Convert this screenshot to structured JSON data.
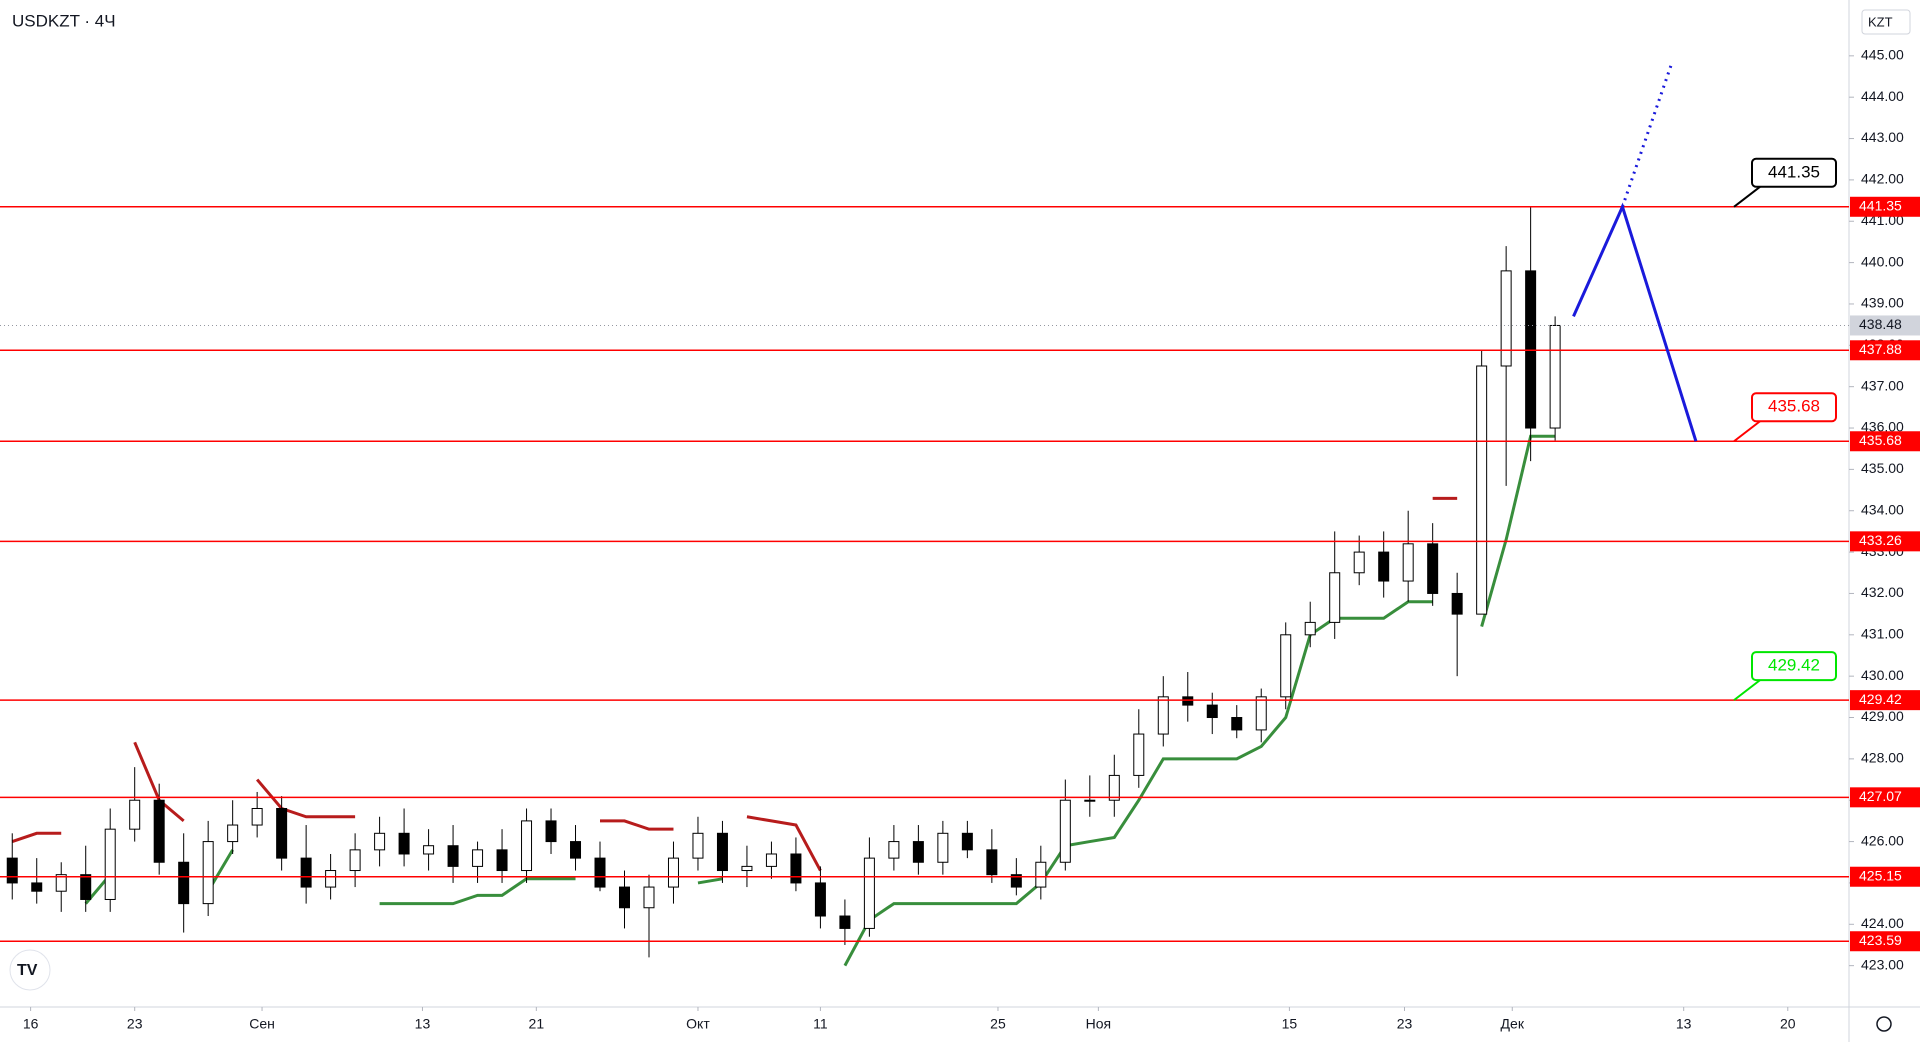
{
  "chart_data": {
    "type": "candlestick",
    "title": "USDKZT · 4Ч",
    "currency": "KZT",
    "x": [
      1,
      3,
      5,
      7,
      9,
      11,
      13,
      15,
      17,
      19,
      21,
      23,
      25,
      27,
      29,
      31,
      33,
      35,
      37,
      39,
      41,
      43,
      45,
      47,
      49,
      51,
      53,
      55,
      57,
      59,
      61,
      63,
      65,
      67,
      69,
      71,
      73,
      75,
      77,
      79,
      81,
      83,
      85,
      87,
      89,
      91,
      93,
      95,
      97,
      99,
      101,
      103,
      105,
      107,
      109,
      111,
      113,
      115,
      117,
      119,
      121,
      123,
      125,
      127
    ],
    "open": [
      425.6,
      425.0,
      424.8,
      425.2,
      424.6,
      426.3,
      427.0,
      425.5,
      424.5,
      426.0,
      426.4,
      426.8,
      425.6,
      424.9,
      425.3,
      425.8,
      426.2,
      425.7,
      425.9,
      425.4,
      425.8,
      425.3,
      426.5,
      426.0,
      425.6,
      424.9,
      424.4,
      424.9,
      425.6,
      426.2,
      425.3,
      425.4,
      425.7,
      425.0,
      424.2,
      423.9,
      425.6,
      426.0,
      425.5,
      426.2,
      425.8,
      425.2,
      424.9,
      425.5,
      427.0,
      427.0,
      427.6,
      428.6,
      429.5,
      429.3,
      429.0,
      428.7,
      429.5,
      431.0,
      431.3,
      432.5,
      433.0,
      432.3,
      433.2,
      432.0,
      431.5,
      437.5,
      439.8,
      436.0
    ],
    "high": [
      426.2,
      425.6,
      425.5,
      425.9,
      426.8,
      427.8,
      427.4,
      426.2,
      426.5,
      427.0,
      427.2,
      427.1,
      426.4,
      425.7,
      426.2,
      426.6,
      426.8,
      426.3,
      426.4,
      426.0,
      426.3,
      426.8,
      426.8,
      426.4,
      426.0,
      425.3,
      425.2,
      426.0,
      426.6,
      426.5,
      425.9,
      426.0,
      426.1,
      425.4,
      424.6,
      426.1,
      426.4,
      426.4,
      426.5,
      426.5,
      426.3,
      425.6,
      425.9,
      427.5,
      427.6,
      428.1,
      429.2,
      430.0,
      430.1,
      429.6,
      429.3,
      429.7,
      431.3,
      431.8,
      433.5,
      433.4,
      433.5,
      434.0,
      433.7,
      432.5,
      437.9,
      440.4,
      441.35,
      438.7
    ],
    "low": [
      424.6,
      424.5,
      424.3,
      424.3,
      424.3,
      426.0,
      425.2,
      423.8,
      424.2,
      425.7,
      426.1,
      425.3,
      424.5,
      424.6,
      424.9,
      425.4,
      425.4,
      425.3,
      425.0,
      425.0,
      425.0,
      425.0,
      425.7,
      425.3,
      424.8,
      423.9,
      423.2,
      424.5,
      425.3,
      425.0,
      424.9,
      425.1,
      424.8,
      423.9,
      423.5,
      423.7,
      425.3,
      425.2,
      425.2,
      425.6,
      425.0,
      424.7,
      424.6,
      425.3,
      426.6,
      426.6,
      427.3,
      428.3,
      428.9,
      428.6,
      428.5,
      428.4,
      429.2,
      430.7,
      430.9,
      432.2,
      431.9,
      431.8,
      431.7,
      430.0,
      431.5,
      434.6,
      435.2,
      435.7
    ],
    "close": [
      425.0,
      424.8,
      425.2,
      424.6,
      426.3,
      427.0,
      425.5,
      424.5,
      426.0,
      426.4,
      426.8,
      425.6,
      424.9,
      425.3,
      425.8,
      426.2,
      425.7,
      425.9,
      425.4,
      425.8,
      425.3,
      426.5,
      426.0,
      425.6,
      424.9,
      424.4,
      424.9,
      425.6,
      426.2,
      425.3,
      425.4,
      425.7,
      425.0,
      424.2,
      423.9,
      425.6,
      426.0,
      425.5,
      426.2,
      425.8,
      425.2,
      424.9,
      425.5,
      427.0,
      427.0,
      427.6,
      428.6,
      429.5,
      429.3,
      429.0,
      428.7,
      429.5,
      431.0,
      431.3,
      432.5,
      433.0,
      432.3,
      433.2,
      432.0,
      431.5,
      437.5,
      439.8,
      436.0,
      438.48
    ],
    "trend_up": [
      null,
      null,
      null,
      424.5,
      425.2,
      null,
      null,
      null,
      424.8,
      425.8,
      null,
      null,
      null,
      null,
      null,
      424.5,
      424.5,
      424.5,
      424.5,
      424.7,
      424.7,
      425.1,
      425.1,
      425.1,
      null,
      null,
      null,
      null,
      425.0,
      425.1,
      null,
      null,
      null,
      null,
      423.0,
      424.1,
      424.5,
      424.5,
      424.5,
      424.5,
      424.5,
      424.5,
      425.0,
      425.9,
      426.0,
      426.1,
      427.0,
      428.0,
      428.0,
      428.0,
      428.0,
      428.3,
      429.0,
      431.0,
      431.4,
      431.4,
      431.4,
      431.8,
      431.8,
      null,
      431.2,
      433.3,
      435.8,
      435.8
    ],
    "trend_down": [
      426.0,
      426.2,
      426.2,
      null,
      null,
      428.4,
      427.0,
      426.5,
      null,
      null,
      427.5,
      426.8,
      426.6,
      426.6,
      426.6,
      null,
      null,
      null,
      null,
      null,
      null,
      null,
      null,
      null,
      426.5,
      426.5,
      426.3,
      426.3,
      null,
      null,
      426.6,
      426.5,
      426.4,
      425.3,
      null,
      null,
      null,
      null,
      null,
      null,
      null,
      null,
      null,
      null,
      null,
      null,
      null,
      null,
      null,
      null,
      null,
      null,
      null,
      null,
      null,
      null,
      null,
      null,
      434.3,
      434.3,
      null,
      null,
      null,
      null
    ],
    "levels": [
      441.35,
      437.88,
      435.68,
      433.26,
      429.42,
      427.07,
      425.15,
      423.59
    ],
    "last_price": 438.48,
    "callouts": [
      {
        "value": 441.35,
        "color": "#000000"
      },
      {
        "value": 435.68,
        "color": "#ff0000"
      },
      {
        "value": 429.42,
        "color": "#00e600"
      }
    ],
    "projection": {
      "x": [
        128.5,
        132.5,
        138.5
      ],
      "values": [
        438.7,
        441.35,
        435.68
      ]
    },
    "projection_dotted": {
      "x": [
        132.5,
        136.5
      ],
      "values": [
        441.35,
        444.8
      ]
    },
    "xlim": [
      0,
      151
    ],
    "xticks": [
      {
        "value": 2.5,
        "label": "16"
      },
      {
        "value": 11,
        "label": "23"
      },
      {
        "value": 21.4,
        "label": "Сен"
      },
      {
        "value": 34.5,
        "label": "13"
      },
      {
        "value": 43.8,
        "label": "21"
      },
      {
        "value": 57,
        "label": "Окт"
      },
      {
        "value": 67,
        "label": "11"
      },
      {
        "value": 81.5,
        "label": "25"
      },
      {
        "value": 89.7,
        "label": "Ноя"
      },
      {
        "value": 105.3,
        "label": "15"
      },
      {
        "value": 114.7,
        "label": "23"
      },
      {
        "value": 123.5,
        "label": "Дек"
      },
      {
        "value": 137.5,
        "label": "13"
      },
      {
        "value": 146,
        "label": "20"
      }
    ],
    "ylim": [
      422.0,
      446.35
    ],
    "yticks": [
      {
        "value": 423,
        "label": "423.00"
      },
      {
        "value": 424,
        "label": "424.00"
      },
      {
        "value": 425,
        "label": "425.00"
      },
      {
        "value": 426,
        "label": "426.00"
      },
      {
        "value": 427,
        "label": "427.00"
      },
      {
        "value": 428,
        "label": "428.00"
      },
      {
        "value": 429,
        "label": "429.00"
      },
      {
        "value": 430,
        "label": "430.00"
      },
      {
        "value": 431,
        "label": "431.00"
      },
      {
        "value": 432,
        "label": "432.00"
      },
      {
        "value": 433,
        "label": "433.00"
      },
      {
        "value": 434,
        "label": "434.00"
      },
      {
        "value": 435,
        "label": "435.00"
      },
      {
        "value": 436,
        "label": "436.00"
      },
      {
        "value": 437,
        "label": "437.00"
      },
      {
        "value": 438,
        "label": "438.00"
      },
      {
        "value": 439,
        "label": "439.00"
      },
      {
        "value": 440,
        "label": "440.00"
      },
      {
        "value": 441,
        "label": "441.00"
      },
      {
        "value": 442,
        "label": "442.00"
      },
      {
        "value": 443,
        "label": "443.00"
      },
      {
        "value": 444,
        "label": "444.00"
      },
      {
        "value": 445,
        "label": "445.00"
      }
    ]
  }
}
